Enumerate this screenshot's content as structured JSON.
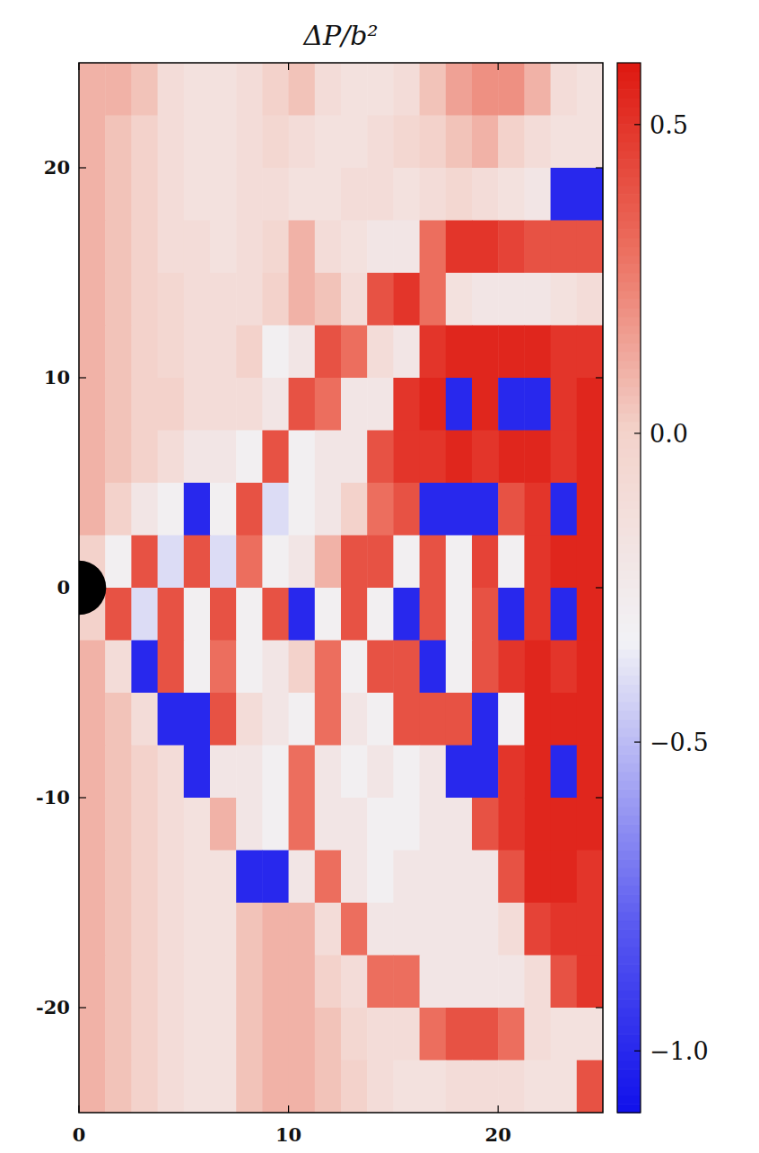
{
  "chart_data": {
    "type": "heatmap",
    "title": "ΔP/b²",
    "x": [
      0.625,
      1.875,
      3.125,
      4.375,
      5.625,
      6.875,
      8.125,
      9.375,
      10.625,
      11.875,
      13.125,
      14.375,
      15.625,
      16.875,
      18.125,
      19.375,
      20.625,
      21.875,
      23.125,
      24.375
    ],
    "y": [
      23.75,
      21.25,
      18.75,
      16.25,
      13.75,
      11.25,
      8.75,
      6.25,
      3.75,
      1.25,
      -1.25,
      -3.75,
      -6.25,
      -8.75,
      -11.25,
      -13.75,
      -16.25,
      -18.75,
      -21.25,
      -23.75
    ],
    "values": [
      [
        0.1,
        0.1,
        0.05,
        -0.1,
        -0.15,
        -0.15,
        -0.1,
        0.0,
        0.05,
        -0.1,
        -0.15,
        -0.15,
        -0.1,
        0.05,
        0.15,
        0.2,
        0.2,
        0.1,
        -0.1,
        -0.15
      ],
      [
        0.1,
        0.05,
        0.0,
        -0.1,
        -0.15,
        -0.15,
        -0.1,
        -0.05,
        -0.1,
        -0.15,
        -0.15,
        -0.1,
        -0.05,
        0.0,
        0.05,
        0.1,
        0.0,
        -0.1,
        -0.15,
        -0.15
      ],
      [
        0.1,
        0.05,
        0.0,
        -0.1,
        -0.15,
        -0.15,
        -0.1,
        -0.1,
        -0.15,
        -0.15,
        -0.1,
        -0.1,
        -0.15,
        -0.1,
        -0.05,
        -0.1,
        -0.15,
        -0.2,
        -1.0,
        -1.0
      ],
      [
        0.1,
        0.05,
        0.0,
        -0.1,
        -0.1,
        -0.15,
        -0.1,
        -0.05,
        0.1,
        -0.1,
        -0.15,
        -0.2,
        -0.2,
        0.3,
        0.5,
        0.5,
        0.45,
        0.4,
        0.4,
        0.4
      ],
      [
        0.1,
        0.05,
        0.0,
        -0.05,
        -0.1,
        -0.1,
        -0.1,
        0.0,
        0.1,
        0.05,
        -0.1,
        0.4,
        0.5,
        0.3,
        -0.15,
        -0.2,
        -0.2,
        -0.2,
        -0.15,
        -0.1
      ],
      [
        0.1,
        0.05,
        0.0,
        -0.05,
        -0.1,
        -0.1,
        0.0,
        -0.3,
        -0.2,
        0.4,
        0.3,
        -0.1,
        -0.2,
        0.5,
        0.55,
        0.55,
        0.55,
        0.55,
        0.5,
        0.5
      ],
      [
        0.1,
        0.05,
        0.0,
        0.0,
        -0.1,
        -0.1,
        -0.1,
        -0.2,
        0.4,
        0.3,
        -0.2,
        -0.2,
        0.5,
        0.55,
        -1.0,
        0.55,
        -1.0,
        -1.0,
        0.5,
        0.55
      ],
      [
        0.1,
        0.05,
        0.0,
        -0.1,
        -0.2,
        -0.2,
        -0.3,
        0.4,
        -0.3,
        -0.2,
        -0.2,
        0.4,
        0.5,
        0.5,
        0.55,
        0.5,
        0.55,
        0.55,
        0.5,
        0.55
      ],
      [
        0.1,
        0.0,
        -0.2,
        -0.3,
        -1.0,
        -0.3,
        0.4,
        -0.4,
        -0.3,
        -0.2,
        0.0,
        0.3,
        0.4,
        -1.0,
        -1.0,
        -1.0,
        0.4,
        0.5,
        -1.0,
        0.55
      ],
      [
        0.0,
        -0.3,
        0.4,
        -0.4,
        0.4,
        -0.4,
        0.3,
        -0.3,
        -0.2,
        0.1,
        0.4,
        0.4,
        -0.3,
        0.4,
        -0.3,
        0.45,
        -0.3,
        0.5,
        0.55,
        0.55
      ],
      [
        0.0,
        0.4,
        -0.4,
        0.4,
        -0.3,
        0.4,
        -0.3,
        0.4,
        -1.0,
        -0.3,
        0.4,
        -0.3,
        -1.0,
        0.4,
        -0.3,
        0.4,
        -1.0,
        0.5,
        -1.0,
        0.55
      ],
      [
        0.1,
        -0.1,
        -1.0,
        0.4,
        -0.3,
        0.3,
        -0.3,
        -0.2,
        0.0,
        0.3,
        -0.3,
        0.4,
        0.4,
        -1.0,
        -0.3,
        0.4,
        0.5,
        0.55,
        0.5,
        0.55
      ],
      [
        0.1,
        0.05,
        -0.1,
        -1.0,
        -1.0,
        0.4,
        -0.1,
        -0.2,
        -0.3,
        0.3,
        -0.2,
        -0.3,
        0.4,
        0.4,
        0.4,
        -1.0,
        -0.3,
        0.55,
        0.55,
        0.55
      ],
      [
        0.1,
        0.05,
        0.0,
        -0.1,
        -1.0,
        -0.2,
        -0.2,
        -0.3,
        0.3,
        -0.2,
        -0.3,
        -0.2,
        -0.3,
        -0.2,
        -1.0,
        -1.0,
        0.5,
        0.55,
        -1.0,
        0.55
      ],
      [
        0.1,
        0.05,
        0.0,
        -0.1,
        -0.15,
        0.1,
        -0.2,
        -0.3,
        0.3,
        -0.2,
        -0.2,
        -0.3,
        -0.3,
        -0.2,
        -0.2,
        0.4,
        0.5,
        0.55,
        0.55,
        0.55
      ],
      [
        0.1,
        0.05,
        0.0,
        -0.1,
        -0.15,
        -0.15,
        -1.0,
        -1.0,
        -0.2,
        0.3,
        -0.2,
        -0.3,
        -0.2,
        -0.2,
        -0.2,
        -0.2,
        0.4,
        0.55,
        0.55,
        0.5
      ],
      [
        0.1,
        0.05,
        0.0,
        -0.1,
        -0.15,
        -0.15,
        0.05,
        0.1,
        0.1,
        -0.1,
        0.3,
        -0.2,
        -0.2,
        -0.2,
        -0.2,
        -0.2,
        -0.1,
        0.45,
        0.5,
        0.5
      ],
      [
        0.1,
        0.05,
        0.0,
        -0.1,
        -0.15,
        -0.15,
        0.05,
        0.1,
        0.1,
        0.0,
        -0.1,
        0.3,
        0.3,
        -0.2,
        -0.2,
        -0.2,
        -0.2,
        -0.1,
        0.4,
        0.5
      ],
      [
        0.1,
        0.05,
        0.0,
        -0.1,
        -0.15,
        -0.15,
        0.05,
        0.1,
        0.1,
        0.05,
        -0.05,
        -0.1,
        -0.1,
        0.3,
        0.4,
        0.4,
        0.3,
        -0.1,
        -0.15,
        -0.15
      ],
      [
        0.1,
        0.05,
        0.0,
        -0.1,
        -0.15,
        -0.15,
        0.05,
        0.1,
        0.1,
        0.05,
        0.0,
        -0.1,
        -0.15,
        -0.15,
        -0.1,
        -0.1,
        -0.1,
        -0.15,
        -0.15,
        0.4
      ]
    ],
    "xlim": [
      0,
      25
    ],
    "ylim": [
      -25,
      25
    ],
    "xticks": [
      0,
      10,
      20
    ],
    "yticks": [
      -20,
      -10,
      0,
      10,
      20
    ],
    "colorbar": {
      "range": [
        -1.1,
        0.6
      ],
      "ticks": [
        0.5,
        {
          "value": 0,
          "label": "0.0"
        },
        {
          "value": -0.5,
          "label": "−0.5"
        },
        {
          "value": -1,
          "label": "−1.0"
        }
      ]
    }
  }
}
